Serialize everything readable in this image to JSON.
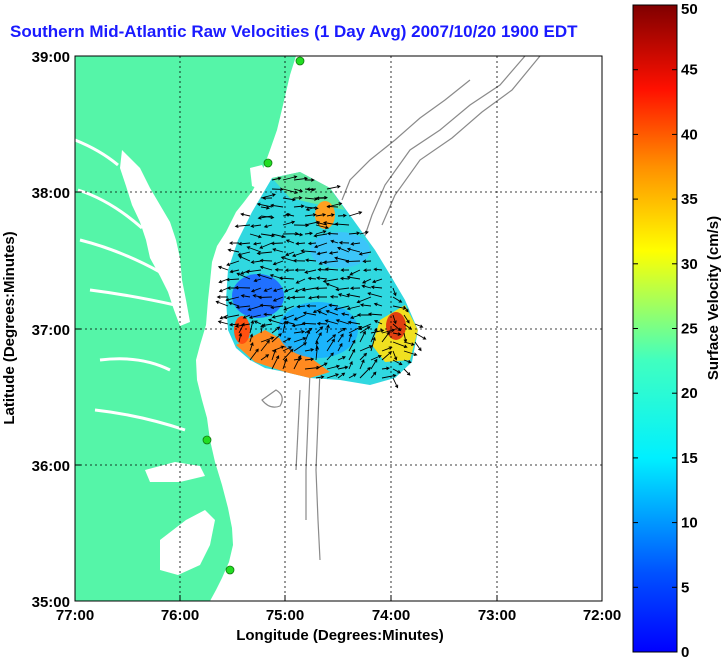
{
  "title": "Southern Mid-Atlantic Raw Velocities (1 Day Avg) 2007/10/20 1900 EDT",
  "map": {
    "xlabel": "Longitude (Degrees:Minutes)",
    "ylabel": "Latitude (Degrees:Minutes)",
    "lon_ticks": [
      "77:00",
      "76:00",
      "75:00",
      "74:00",
      "73:00",
      "72:00"
    ],
    "lat_ticks": [
      "39:00",
      "38:00",
      "37:00",
      "36:00",
      "35:00"
    ],
    "lon_range": [
      -77,
      -72
    ],
    "lat_range": [
      35,
      39
    ],
    "grid": true,
    "land_color": "#55f5a8",
    "bathymetry_color": "#8a8a8a",
    "station_color": "#22dd22"
  },
  "colorbar": {
    "label": "Surface Velocity (cm/s)",
    "ticks": [
      "0",
      "5",
      "10",
      "15",
      "20",
      "25",
      "30",
      "35",
      "40",
      "45",
      "50"
    ],
    "range": [
      0,
      50
    ],
    "colormap": "jet"
  }
}
